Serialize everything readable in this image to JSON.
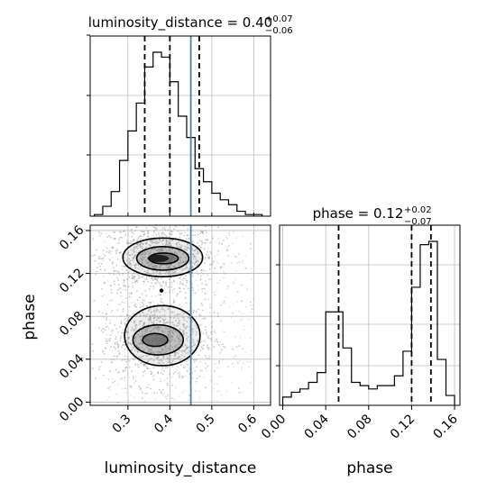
{
  "chart_data": [
    {
      "type": "histogram",
      "panel": "luminosity_distance-marginal",
      "title": {
        "main": "luminosity_distance = 0.40",
        "sup": "+0.07",
        "sub": "−0.06"
      },
      "xlim": [
        0.21,
        0.64
      ],
      "bin_edges": [
        0.22,
        0.24,
        0.26,
        0.28,
        0.3,
        0.32,
        0.34,
        0.36,
        0.38,
        0.4,
        0.42,
        0.44,
        0.46,
        0.48,
        0.5,
        0.52,
        0.54,
        0.56,
        0.58,
        0.6,
        0.62
      ],
      "counts": [
        0.01,
        0.06,
        0.15,
        0.34,
        0.52,
        0.69,
        0.91,
        1.0,
        0.97,
        0.82,
        0.61,
        0.48,
        0.29,
        0.21,
        0.14,
        0.1,
        0.07,
        0.03,
        0.01,
        0.01
      ],
      "quantile_lines": [
        0.34,
        0.4,
        0.47
      ],
      "truth": 0.45,
      "grid": true
    },
    {
      "type": "histogram",
      "panel": "phase-marginal",
      "title": {
        "main": "phase = 0.12",
        "sup": "+0.02",
        "sub": "−0.07"
      },
      "xlim": [
        -0.003,
        0.165
      ],
      "xticks": [
        "0.00",
        "0.04",
        "0.08",
        "0.12",
        "0.16"
      ],
      "xtick_values": [
        0.0,
        0.04,
        0.08,
        0.12,
        0.16
      ],
      "xlabel": "phase",
      "bin_edges": [
        0.0,
        0.008,
        0.016,
        0.024,
        0.032,
        0.04,
        0.048,
        0.056,
        0.064,
        0.072,
        0.08,
        0.088,
        0.096,
        0.104,
        0.112,
        0.12,
        0.128,
        0.136,
        0.144,
        0.152,
        0.16
      ],
      "counts": [
        0.05,
        0.08,
        0.1,
        0.14,
        0.2,
        0.57,
        0.57,
        0.35,
        0.14,
        0.12,
        0.1,
        0.12,
        0.12,
        0.18,
        0.33,
        0.72,
        0.98,
        1.0,
        0.28,
        0.06
      ],
      "quantile_lines": [
        0.052,
        0.12,
        0.138
      ],
      "grid": true
    },
    {
      "type": "scatter",
      "panel": "luminosity_distance-vs-phase",
      "xlim": [
        0.21,
        0.64
      ],
      "ylim": [
        -0.003,
        0.165
      ],
      "xticks": [
        "0.3",
        "0.4",
        "0.5",
        "0.6"
      ],
      "xtick_values": [
        0.3,
        0.4,
        0.5,
        0.6
      ],
      "yticks": [
        "0.00",
        "0.04",
        "0.08",
        "0.12",
        "0.16"
      ],
      "ytick_values": [
        0.0,
        0.04,
        0.08,
        0.12,
        0.16
      ],
      "xlabel": "luminosity_distance",
      "ylabel": "phase",
      "truth_x": 0.45,
      "modes": [
        {
          "cx": 0.375,
          "cy": 0.135,
          "sx": 0.055,
          "sy": 0.01
        },
        {
          "cx": 0.37,
          "cy": 0.058,
          "sx": 0.055,
          "sy": 0.013
        }
      ],
      "contours": [
        {
          "level": 1,
          "cx": 0.383,
          "cy": 0.135,
          "rx": 0.095,
          "ry": 0.018
        },
        {
          "level": 2,
          "cx": 0.383,
          "cy": 0.134,
          "rx": 0.062,
          "ry": 0.011
        },
        {
          "level": 3,
          "cx": 0.385,
          "cy": 0.134,
          "rx": 0.035,
          "ry": 0.005
        },
        {
          "level": 1,
          "cx": 0.382,
          "cy": 0.062,
          "rx": 0.09,
          "ry": 0.028
        },
        {
          "level": 2,
          "cx": 0.372,
          "cy": 0.058,
          "rx": 0.06,
          "ry": 0.014
        },
        {
          "level": 3,
          "cx": 0.365,
          "cy": 0.058,
          "rx": 0.03,
          "ry": 0.006
        }
      ],
      "bridge_point": [
        0.38,
        0.104
      ],
      "grid": true
    }
  ],
  "colors": {
    "truth": "#4682b4",
    "hist": "#000000",
    "grid": "#bdbdbd",
    "points": "#9a9a9a",
    "density": "#555555"
  }
}
